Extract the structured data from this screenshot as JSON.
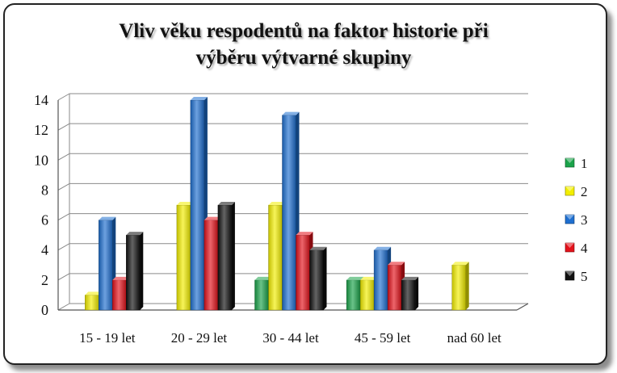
{
  "chart_data": {
    "type": "bar",
    "title_lines": [
      "Vliv věku respodentů na faktor historie při",
      "výběru výtvarné skupiny"
    ],
    "categories": [
      "15 - 19 let",
      "20 - 29 let",
      "30 - 44 let",
      "45 - 59 let",
      "nad 60 let"
    ],
    "series": [
      {
        "name": "1",
        "color": "#1aa34a",
        "values": [
          0,
          0,
          2,
          2,
          0
        ]
      },
      {
        "name": "2",
        "color": "#f2ee00",
        "values": [
          1,
          7,
          7,
          2,
          3
        ]
      },
      {
        "name": "3",
        "color": "#1e6fd0",
        "values": [
          6,
          14,
          13,
          4,
          0
        ]
      },
      {
        "name": "4",
        "color": "#e3121b",
        "values": [
          2,
          6,
          5,
          3,
          0
        ]
      },
      {
        "name": "5",
        "color": "#111111",
        "values": [
          5,
          7,
          4,
          2,
          0
        ]
      }
    ],
    "ylim": [
      0,
      14
    ],
    "yticks": [
      "0",
      "2",
      "4",
      "6",
      "8",
      "10",
      "12",
      "14"
    ],
    "grid": true,
    "legend_position": "right",
    "style": "3d"
  }
}
